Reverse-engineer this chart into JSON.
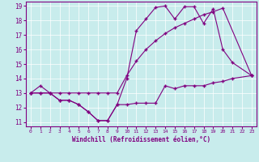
{
  "xlabel": "Windchill (Refroidissement éolien,°C)",
  "bg_color": "#c8ecec",
  "line_color": "#800080",
  "xlim": [
    -0.5,
    23.5
  ],
  "ylim": [
    10.7,
    19.3
  ],
  "xticks": [
    0,
    1,
    2,
    3,
    4,
    5,
    6,
    7,
    8,
    9,
    10,
    11,
    12,
    13,
    14,
    15,
    16,
    17,
    18,
    19,
    20,
    21,
    22,
    23
  ],
  "yticks": [
    11,
    12,
    13,
    14,
    15,
    16,
    17,
    18,
    19
  ],
  "line1_x": [
    0,
    1,
    2,
    3,
    4,
    5,
    6,
    7,
    8,
    9,
    10,
    11,
    12,
    13,
    14,
    15,
    16,
    17,
    18,
    19,
    20,
    21,
    23
  ],
  "line1_y": [
    13,
    13.5,
    13,
    12.5,
    12.5,
    12.2,
    11.7,
    11.1,
    11.1,
    12.2,
    12.2,
    12.3,
    12.3,
    12.3,
    13.5,
    13.3,
    13.5,
    13.5,
    13.5,
    13.7,
    13.8,
    14.0,
    14.2
  ],
  "line2_x": [
    0,
    1,
    2,
    3,
    4,
    5,
    6,
    7,
    8,
    9,
    10,
    11,
    12,
    13,
    14,
    15,
    16,
    17,
    18,
    19,
    20,
    21,
    23
  ],
  "line2_y": [
    13,
    13,
    13,
    12.5,
    12.5,
    12.2,
    11.7,
    11.1,
    11.1,
    12.2,
    14.0,
    17.3,
    18.1,
    18.9,
    19.0,
    18.1,
    18.95,
    18.95,
    17.8,
    18.8,
    16.0,
    15.1,
    14.2
  ],
  "line3_x": [
    0,
    1,
    2,
    3,
    4,
    5,
    6,
    7,
    8,
    9,
    10,
    11,
    12,
    13,
    14,
    15,
    16,
    17,
    18,
    19,
    20,
    23
  ],
  "line3_y": [
    13,
    13,
    13,
    13,
    13,
    13,
    13,
    13,
    13,
    13,
    14.2,
    15.2,
    16.0,
    16.6,
    17.1,
    17.5,
    17.8,
    18.1,
    18.4,
    18.6,
    18.85,
    14.2
  ]
}
